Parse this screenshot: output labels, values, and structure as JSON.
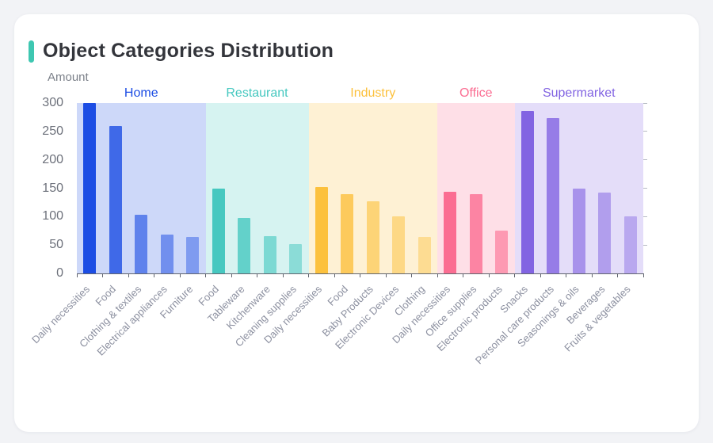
{
  "header": {
    "title": "Object Categories Distribution",
    "accent_color": "#3ec7b1"
  },
  "chart_data": {
    "type": "bar",
    "title": "Object Categories Distribution",
    "xlabel": "",
    "ylabel": "Amount",
    "ylim": [
      0,
      300
    ],
    "yticks": [
      0,
      50,
      100,
      150,
      200,
      250,
      300
    ],
    "grid": false,
    "legend_position": "none",
    "groups": [
      {
        "name": "Home",
        "color": "#1c4de4",
        "categories": [
          "Daily necessities",
          "Food",
          "Clothing & textiles",
          "Electrical appliances",
          "Furniture"
        ],
        "values": [
          300,
          260,
          103,
          68,
          64
        ]
      },
      {
        "name": "Restaurant",
        "color": "#46c8c0",
        "categories": [
          "Food",
          "Tableware",
          "Kitchenware",
          "Cleaning supplies"
        ],
        "values": [
          150,
          97,
          65,
          52
        ]
      },
      {
        "name": "Industry",
        "color": "#fcc13d",
        "categories": [
          "Daily necessities",
          "Food",
          "Baby Products",
          "Electronic Devices",
          "Clothing"
        ],
        "values": [
          152,
          140,
          127,
          100,
          64
        ]
      },
      {
        "name": "Office",
        "color": "#fb6d92",
        "categories": [
          "Daily necessities",
          "Office supplies",
          "Electronic products"
        ],
        "values": [
          144,
          139,
          75
        ]
      },
      {
        "name": "Supermarket",
        "color": "#8264e2",
        "categories": [
          "Snacks",
          "Personal care products",
          "Seasonings & oils",
          "Beverages",
          "Fruits & vegetables"
        ],
        "values": [
          286,
          273,
          149,
          142,
          101
        ]
      }
    ]
  }
}
